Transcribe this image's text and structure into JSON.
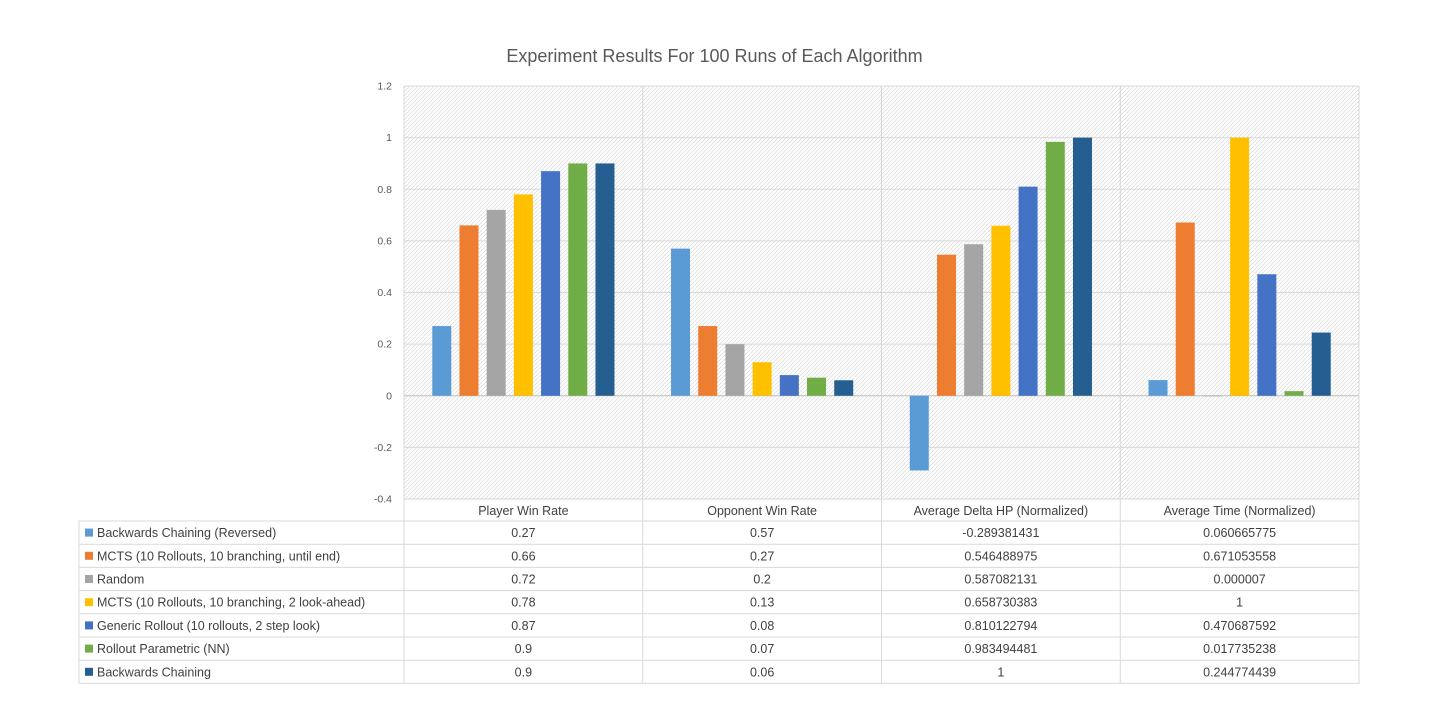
{
  "chart_data": {
    "type": "bar",
    "title": "Experiment Results For 100 Runs of Each Algorithm",
    "categories": [
      "Player Win Rate",
      "Opponent Win Rate",
      "Average Delta HP (Normalized)",
      "Average Time (Normalized)"
    ],
    "ylim": [
      -0.4,
      1.2
    ],
    "yticks": [
      -0.4,
      -0.2,
      0,
      0.2,
      0.4,
      0.6,
      0.8,
      1,
      1.2
    ],
    "ytick_labels": [
      "-0.4",
      "-0.2",
      "0",
      "0.2",
      "0.4",
      "0.6",
      "0.8",
      "1",
      "1.2"
    ],
    "grid": true,
    "legend_placement": "data-table-below",
    "series": [
      {
        "name": "Backwards Chaining (Reversed)",
        "color": "#5B9BD5",
        "values": [
          0.27,
          0.57,
          -0.289381431,
          0.060665775
        ],
        "labels": [
          "0.27",
          "0.57",
          "-0.289381431",
          "0.060665775"
        ]
      },
      {
        "name": "MCTS (10 Rollouts, 10 branching, until end)",
        "color": "#ED7D31",
        "values": [
          0.66,
          0.27,
          0.546488975,
          0.671053558
        ],
        "labels": [
          "0.66",
          "0.27",
          "0.546488975",
          "0.671053558"
        ]
      },
      {
        "name": "Random",
        "color": "#A5A5A5",
        "values": [
          0.72,
          0.2,
          0.587082131,
          7e-06
        ],
        "labels": [
          "0.72",
          "0.2",
          "0.587082131",
          "0.000007"
        ]
      },
      {
        "name": "MCTS (10 Rollouts, 10 branching, 2 look-ahead)",
        "color": "#FFC000",
        "values": [
          0.78,
          0.13,
          0.658730383,
          1
        ],
        "labels": [
          "0.78",
          "0.13",
          "0.658730383",
          "1"
        ]
      },
      {
        "name": "Generic Rollout (10 rollouts, 2 step look)",
        "color": "#4472C4",
        "values": [
          0.87,
          0.08,
          0.810122794,
          0.470687592
        ],
        "labels": [
          "0.87",
          "0.08",
          "0.810122794",
          "0.470687592"
        ]
      },
      {
        "name": "Rollout Parametric (NN)",
        "color": "#70AD47",
        "values": [
          0.9,
          0.07,
          0.983494481,
          0.017735238
        ],
        "labels": [
          "0.9",
          "0.07",
          "0.983494481",
          "0.017735238"
        ]
      },
      {
        "name": "Backwards Chaining",
        "color": "#255E91",
        "values": [
          0.9,
          0.06,
          1,
          0.244774439
        ],
        "labels": [
          "0.9",
          "0.06",
          "1",
          "0.244774439"
        ]
      }
    ]
  }
}
